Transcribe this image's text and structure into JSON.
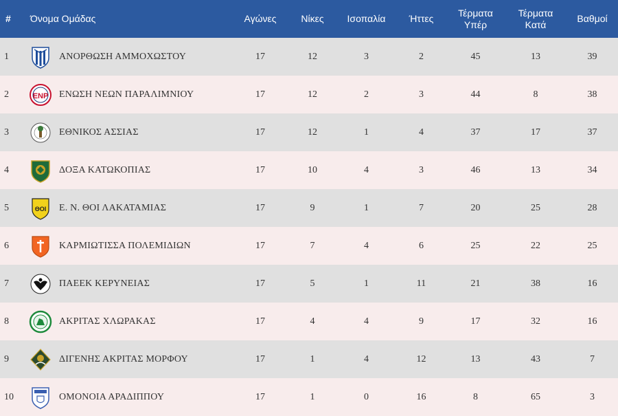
{
  "headers": {
    "rank": "#",
    "team": "Όνομα Ομάδας",
    "played": "Αγώνες",
    "wins": "Νίκες",
    "draws": "Ισοπαλία",
    "losses": "Ήττες",
    "goals_for_1": "Τέρματα",
    "goals_for_2": "Υπέρ",
    "goals_against_1": "Τέρματα",
    "goals_against_2": "Κατά",
    "points": "Βαθμοί"
  },
  "rows": [
    {
      "rank": "1",
      "team": "ΑΝΟΡΘΩΣΗ ΑΜΜΟΧΩΣΤΟΥ",
      "logo": "anorthosi-crest-icon",
      "played": "17",
      "wins": "12",
      "draws": "3",
      "losses": "2",
      "gf": "45",
      "ga": "13",
      "pts": "39"
    },
    {
      "rank": "2",
      "team": "ΕΝΩΣΗ ΝΕΩΝ ΠΑΡΑΛΙΜΝΙΟΥ",
      "logo": "enp-crest-icon",
      "played": "17",
      "wins": "12",
      "draws": "2",
      "losses": "3",
      "gf": "44",
      "ga": "8",
      "pts": "38"
    },
    {
      "rank": "3",
      "team": "ΕΘΝΙΚΟΣ ΑΣΣΙΑΣ",
      "logo": "ethnikos-assias-crest-icon",
      "played": "17",
      "wins": "12",
      "draws": "1",
      "losses": "4",
      "gf": "37",
      "ga": "17",
      "pts": "37"
    },
    {
      "rank": "4",
      "team": "ΔΟΞΑ ΚΑΤΩΚΟΠΙΑΣ",
      "logo": "doxa-crest-icon",
      "played": "17",
      "wins": "10",
      "draws": "4",
      "losses": "3",
      "gf": "46",
      "ga": "13",
      "pts": "34"
    },
    {
      "rank": "5",
      "team": "Ε. Ν. ΘΟΙ ΛΑΚΑΤΑΜΙΑΣ",
      "logo": "thoi-crest-icon",
      "played": "17",
      "wins": "9",
      "draws": "1",
      "losses": "7",
      "gf": "20",
      "ga": "25",
      "pts": "28"
    },
    {
      "rank": "6",
      "team": "ΚΑΡΜΙΩΤΙΣΣΑ ΠΟΛΕΜΙΔΙΩΝ",
      "logo": "karmiotissa-crest-icon",
      "played": "17",
      "wins": "7",
      "draws": "4",
      "losses": "6",
      "gf": "25",
      "ga": "22",
      "pts": "25"
    },
    {
      "rank": "7",
      "team": "ΠΑΕΕΚ ΚΕΡΥΝΕΙΑΣ",
      "logo": "paeek-crest-icon",
      "played": "17",
      "wins": "5",
      "draws": "1",
      "losses": "11",
      "gf": "21",
      "ga": "38",
      "pts": "16"
    },
    {
      "rank": "8",
      "team": "ΑΚΡΙΤΑΣ ΧΛΩΡΑΚΑΣ",
      "logo": "akritas-crest-icon",
      "played": "17",
      "wins": "4",
      "draws": "4",
      "losses": "9",
      "gf": "17",
      "ga": "32",
      "pts": "16"
    },
    {
      "rank": "9",
      "team": "ΔΙΓΕΝΗΣ ΑΚΡΙΤΑΣ ΜΟΡΦΟΥ",
      "logo": "digenis-crest-icon",
      "played": "17",
      "wins": "1",
      "draws": "4",
      "losses": "12",
      "gf": "13",
      "ga": "43",
      "pts": "7"
    },
    {
      "rank": "10",
      "team": "ΟΜΟΝΟΙΑ ΑΡΑΔΙΠΠΟΥ",
      "logo": "omonia-aradippou-crest-icon",
      "played": "17",
      "wins": "1",
      "draws": "0",
      "losses": "16",
      "gf": "8",
      "ga": "65",
      "pts": "3"
    }
  ],
  "colors": {
    "header_bg": "#2c5aa0",
    "row_odd": "#e0e0e0",
    "row_even": "#f8ecec"
  }
}
